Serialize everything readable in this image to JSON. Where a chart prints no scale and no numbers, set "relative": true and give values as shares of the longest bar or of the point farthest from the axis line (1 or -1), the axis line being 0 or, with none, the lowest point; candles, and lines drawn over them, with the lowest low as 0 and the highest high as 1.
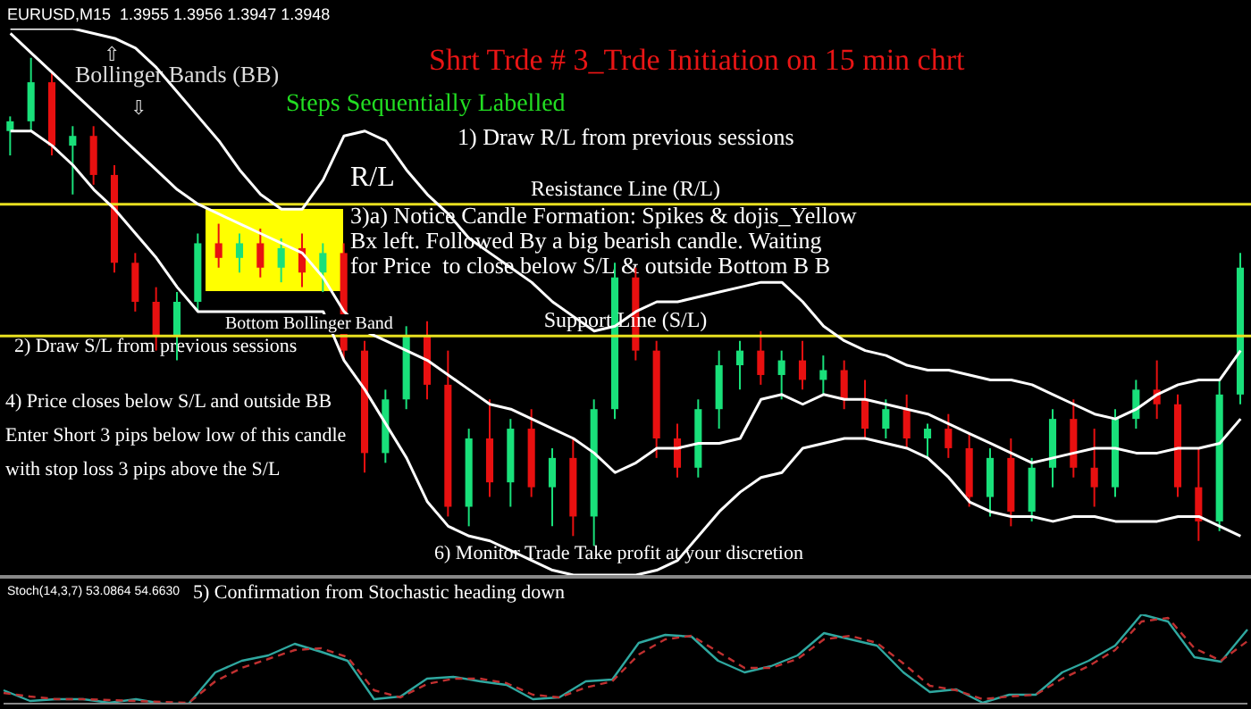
{
  "chart_data": [
    {
      "type": "candlestick",
      "relative": true,
      "title": "EURUSD,M15  1.3955 1.3956 1.3947 1.3948",
      "subtitle": "Shrt Trde # 3_Trde Initiation on 15 min chrt",
      "categories": [
        null,
        null,
        null,
        null,
        null,
        null,
        null,
        null,
        null,
        null,
        null,
        null,
        null,
        null,
        null,
        null,
        null,
        null,
        null,
        null,
        null,
        null,
        null,
        null,
        null,
        null,
        null,
        null,
        null,
        null,
        null,
        null,
        null,
        null,
        null,
        null,
        null,
        null,
        null,
        null,
        null,
        null,
        null,
        null,
        null,
        null,
        null,
        null,
        null,
        null,
        null,
        null,
        null,
        null,
        null,
        null,
        null,
        null,
        null,
        null
      ],
      "ohlc": [
        [
          0.85,
          0.88,
          0.8,
          0.87
        ],
        [
          0.87,
          1.0,
          0.85,
          0.95
        ],
        [
          0.95,
          0.97,
          0.8,
          0.82
        ],
        [
          0.82,
          0.86,
          0.72,
          0.84
        ],
        [
          0.84,
          0.86,
          0.74,
          0.76
        ],
        [
          0.76,
          0.78,
          0.56,
          0.58
        ],
        [
          0.58,
          0.6,
          0.48,
          0.5
        ],
        [
          0.5,
          0.53,
          0.4,
          0.43
        ],
        [
          0.43,
          0.52,
          0.38,
          0.5
        ],
        [
          0.5,
          0.64,
          0.48,
          0.62
        ],
        [
          0.62,
          0.66,
          0.57,
          0.59
        ],
        [
          0.59,
          0.64,
          0.56,
          0.62
        ],
        [
          0.62,
          0.65,
          0.55,
          0.57
        ],
        [
          0.57,
          0.63,
          0.54,
          0.61
        ],
        [
          0.61,
          0.64,
          0.53,
          0.56
        ],
        [
          0.56,
          0.62,
          0.52,
          0.6
        ],
        [
          0.6,
          0.62,
          0.38,
          0.4
        ],
        [
          0.4,
          0.42,
          0.15,
          0.19
        ],
        [
          0.19,
          0.32,
          0.17,
          0.3
        ],
        [
          0.3,
          0.45,
          0.28,
          0.43
        ],
        [
          0.43,
          0.46,
          0.3,
          0.33
        ],
        [
          0.33,
          0.4,
          0.06,
          0.08
        ],
        [
          0.08,
          0.24,
          0.04,
          0.22
        ],
        [
          0.22,
          0.3,
          0.1,
          0.13
        ],
        [
          0.13,
          0.26,
          0.08,
          0.24
        ],
        [
          0.24,
          0.28,
          0.1,
          0.12
        ],
        [
          0.12,
          0.2,
          0.04,
          0.18
        ],
        [
          0.18,
          0.22,
          0.02,
          0.06
        ],
        [
          0.06,
          0.3,
          0.0,
          0.28
        ],
        [
          0.28,
          0.58,
          0.26,
          0.55
        ],
        [
          0.55,
          0.57,
          0.38,
          0.4
        ],
        [
          0.4,
          0.42,
          0.18,
          0.22
        ],
        [
          0.22,
          0.25,
          0.14,
          0.16
        ],
        [
          0.16,
          0.3,
          0.14,
          0.28
        ],
        [
          0.28,
          0.4,
          0.24,
          0.37
        ],
        [
          0.37,
          0.42,
          0.32,
          0.4
        ],
        [
          0.4,
          0.44,
          0.33,
          0.35
        ],
        [
          0.35,
          0.4,
          0.3,
          0.38
        ],
        [
          0.38,
          0.42,
          0.32,
          0.34
        ],
        [
          0.34,
          0.39,
          0.31,
          0.36
        ],
        [
          0.36,
          0.38,
          0.28,
          0.3
        ],
        [
          0.3,
          0.34,
          0.22,
          0.24
        ],
        [
          0.24,
          0.3,
          0.22,
          0.28
        ],
        [
          0.28,
          0.31,
          0.2,
          0.22
        ],
        [
          0.22,
          0.25,
          0.18,
          0.24
        ],
        [
          0.24,
          0.27,
          0.18,
          0.2
        ],
        [
          0.2,
          0.23,
          0.08,
          0.1
        ],
        [
          0.1,
          0.2,
          0.06,
          0.18
        ],
        [
          0.18,
          0.22,
          0.04,
          0.07
        ],
        [
          0.07,
          0.18,
          0.05,
          0.16
        ],
        [
          0.16,
          0.28,
          0.12,
          0.26
        ],
        [
          0.26,
          0.3,
          0.14,
          0.16
        ],
        [
          0.16,
          0.24,
          0.08,
          0.12
        ],
        [
          0.12,
          0.28,
          0.1,
          0.26
        ],
        [
          0.26,
          0.34,
          0.24,
          0.32
        ],
        [
          0.32,
          0.38,
          0.26,
          0.29
        ],
        [
          0.29,
          0.31,
          0.1,
          0.12
        ],
        [
          0.12,
          0.2,
          0.01,
          0.05
        ],
        [
          0.05,
          0.34,
          0.03,
          0.31
        ],
        [
          0.31,
          0.6,
          0.29,
          0.57
        ]
      ],
      "series": [
        {
          "type": "line",
          "color": "#ffffff",
          "values": [
            1.06,
            1.06,
            1.06,
            1.06,
            1.05,
            1.04,
            1.02,
            0.98,
            0.93,
            0.88,
            0.83,
            0.77,
            0.72,
            0.69,
            0.69,
            0.75,
            0.84,
            0.85,
            0.83,
            0.77,
            0.72,
            0.68,
            0.63,
            0.6,
            0.57,
            0.54,
            0.5,
            0.47,
            0.44,
            0.45,
            0.48,
            0.5,
            0.5,
            0.51,
            0.52,
            0.53,
            0.54,
            0.54,
            0.5,
            0.45,
            0.42,
            0.4,
            0.39,
            0.37,
            0.36,
            0.36,
            0.35,
            0.34,
            0.34,
            0.33,
            0.31,
            0.29,
            0.27,
            0.26,
            0.28,
            0.31,
            0.33,
            0.34,
            0.34,
            0.4
          ]
        },
        {
          "type": "line",
          "color": "#ffffff",
          "values": [
            1.05,
            1.01,
            0.97,
            0.93,
            0.89,
            0.85,
            0.81,
            0.77,
            0.73,
            0.7,
            0.68,
            0.66,
            0.64,
            0.62,
            0.6,
            0.55,
            0.48,
            0.44,
            0.42,
            0.4,
            0.38,
            0.35,
            0.32,
            0.29,
            0.28,
            0.26,
            0.24,
            0.22,
            0.19,
            0.15,
            0.17,
            0.2,
            0.2,
            0.21,
            0.21,
            0.22,
            0.3,
            0.31,
            0.29,
            0.31,
            0.3,
            0.3,
            0.29,
            0.28,
            0.27,
            0.25,
            0.23,
            0.21,
            0.19,
            0.17,
            0.18,
            0.19,
            0.2,
            0.2,
            0.19,
            0.19,
            0.2,
            0.2,
            0.21,
            0.26
          ]
        },
        {
          "type": "line",
          "color": "#ffffff",
          "values": [
            0.85,
            0.85,
            0.82,
            0.78,
            0.73,
            0.69,
            0.64,
            0.59,
            0.53,
            0.48,
            0.48,
            0.48,
            0.48,
            0.48,
            0.48,
            0.48,
            0.38,
            0.32,
            0.25,
            0.18,
            0.09,
            0.04,
            0.02,
            0.01,
            -0.01,
            -0.03,
            -0.05,
            -0.06,
            -0.06,
            -0.06,
            -0.06,
            -0.05,
            -0.03,
            0.02,
            0.07,
            0.11,
            0.14,
            0.15,
            0.2,
            0.21,
            0.22,
            0.22,
            0.21,
            0.2,
            0.18,
            0.14,
            0.09,
            0.07,
            0.06,
            0.06,
            0.05,
            0.06,
            0.06,
            0.05,
            0.05,
            0.05,
            0.06,
            0.06,
            0.04,
            0.02
          ]
        }
      ],
      "ref_lines": [
        {
          "axis": "y",
          "value": 0.7,
          "label": "Resistance Line (R/L)",
          "color": "#e8e020"
        },
        {
          "axis": "y",
          "value": 0.43,
          "label": "Support Line (S/L)",
          "color": "#e8e020"
        }
      ],
      "annotations": [
        "Bollinger Bands (BB)",
        "Steps Sequentially Labelled",
        "1) Draw R/L from previous sessions",
        "R/L",
        "3)a) Notice Candle Formation: Spikes & dojis_Yellow\nBx left. Followed By a big bearish candle. Waiting\nfor Price  to close below S/L & outside Bottom B B",
        "Bottom Bollinger Band",
        "2) Draw S/L from previous sessions",
        "4) Price closes below S/L and outside BB\nEnter Short 3 pips below low of this candle\nwith stop loss 3 pips above the S/L",
        "6) Monitor Trade Take profit at your discretion",
        "⇧",
        "⇩"
      ]
    },
    {
      "type": "line",
      "relative": true,
      "title": "Stoch(14,3,7) 53.0864 54.6630",
      "annotations": [
        "5) Confirmation from Stochastic heading down"
      ],
      "categories": [
        null,
        null,
        null,
        null,
        null,
        null,
        null,
        null,
        null,
        null,
        null,
        null,
        null,
        null,
        null,
        null,
        null,
        null,
        null,
        null,
        null,
        null,
        null,
        null,
        null,
        null,
        null,
        null,
        null,
        null,
        null,
        null,
        null,
        null,
        null,
        null,
        null,
        null,
        null,
        null,
        null,
        null,
        null,
        null,
        null,
        null,
        null,
        null
      ],
      "series": [
        {
          "color": "#2fa8a0",
          "line_style": "solid",
          "values": [
            0.15,
            0.03,
            0.05,
            0.05,
            0.01,
            0.05,
            0,
            0,
            0.35,
            0.48,
            0.54,
            0.67,
            0.58,
            0.48,
            0.05,
            0.08,
            0.28,
            0.3,
            0.25,
            0.21,
            0.05,
            0.07,
            0.25,
            0.27,
            0.68,
            0.77,
            0.75,
            0.48,
            0.35,
            0.42,
            0.54,
            0.79,
            0.72,
            0.65,
            0.35,
            0.13,
            0.16,
            0.01,
            0.1,
            0.1,
            0.35,
            0.48,
            0.65,
            1.0,
            0.92,
            0.52,
            0.47,
            0.83
          ]
        },
        {
          "color": "#c03030",
          "line_style": "dashed",
          "values": [
            0.12,
            0.08,
            0.05,
            0.05,
            0.04,
            0.03,
            0.02,
            0.01,
            0.25,
            0.4,
            0.5,
            0.6,
            0.62,
            0.52,
            0.15,
            0.07,
            0.22,
            0.28,
            0.28,
            0.23,
            0.1,
            0.07,
            0.18,
            0.25,
            0.55,
            0.72,
            0.76,
            0.58,
            0.4,
            0.4,
            0.5,
            0.72,
            0.76,
            0.68,
            0.45,
            0.2,
            0.15,
            0.05,
            0.08,
            0.1,
            0.28,
            0.42,
            0.6,
            0.92,
            0.96,
            0.62,
            0.48,
            0.7
          ]
        }
      ]
    }
  ]
}
